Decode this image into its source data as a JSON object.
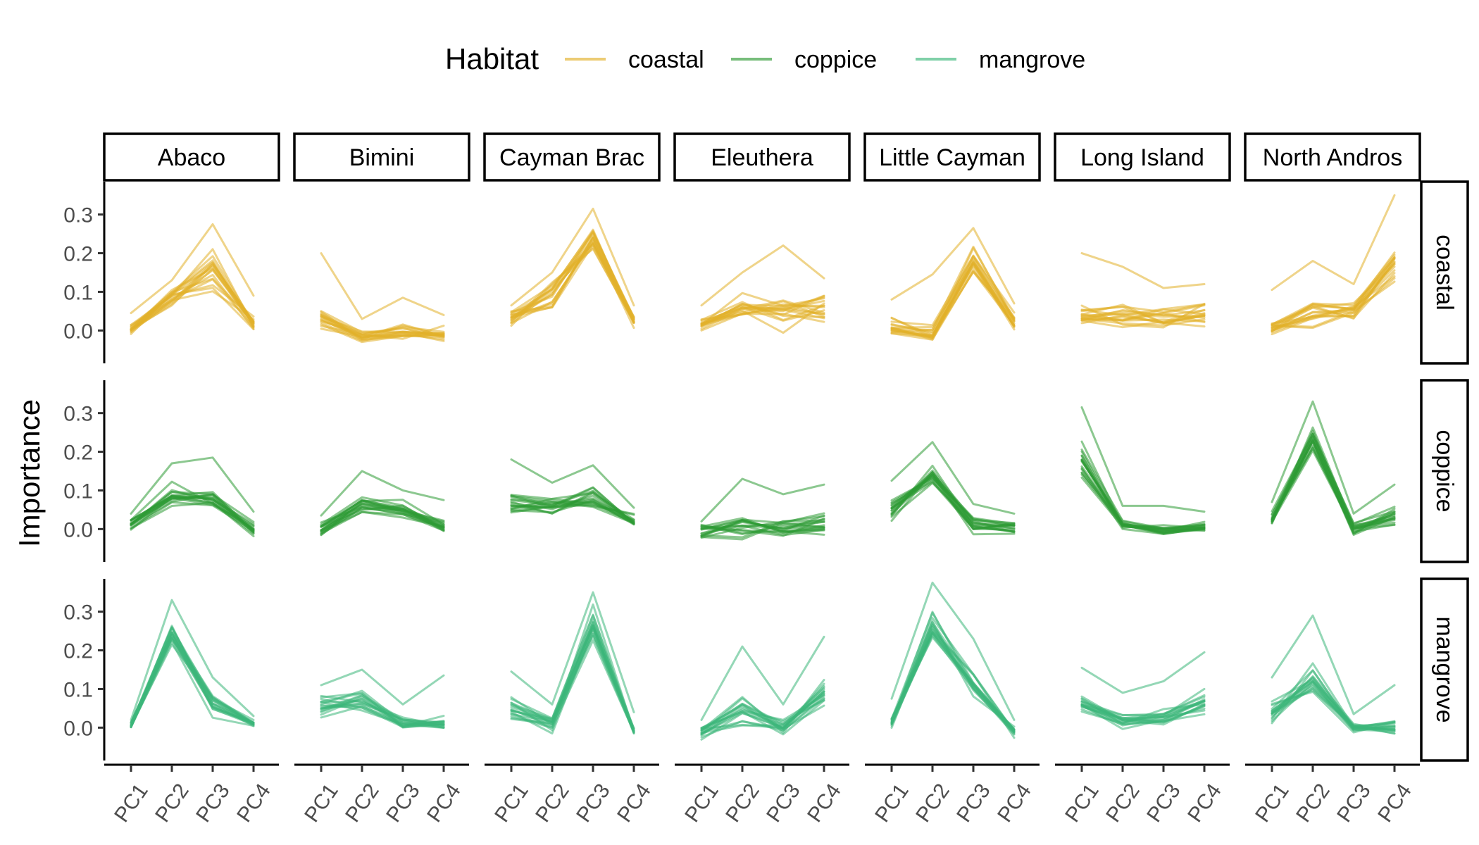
{
  "chart_data": {
    "type": "line",
    "layout": "faceted grid",
    "xlabel": "",
    "ylabel": "Importance",
    "legend": {
      "title": "Habitat",
      "position": "top",
      "entries": [
        {
          "name": "coastal",
          "color": "#E2B12A"
        },
        {
          "name": "coppice",
          "color": "#2E9A34"
        },
        {
          "name": "mangrove",
          "color": "#3CB77A"
        }
      ]
    },
    "columns": [
      "Abaco",
      "Bimini",
      "Cayman Brac",
      "Eleuthera",
      "Little Cayman",
      "Long Island",
      "North Andros"
    ],
    "rows": [
      "coastal",
      "coppice",
      "mangrove"
    ],
    "x": [
      "PC1",
      "PC2",
      "PC3",
      "PC4"
    ],
    "y_ticks": [
      "0.0",
      "0.1",
      "0.2",
      "0.3"
    ],
    "ylim": [
      -0.085,
      0.385
    ],
    "grid": false,
    "line_alpha": 0.55,
    "lines_per_panel": 18,
    "panels": [
      {
        "row": "coastal",
        "column": "Abaco",
        "mean": [
          0.005,
          0.085,
          0.16,
          0.015
        ],
        "spread": [
          0.02,
          0.03,
          0.06,
          0.02
        ],
        "max_line": [
          0.045,
          0.13,
          0.275,
          0.09
        ]
      },
      {
        "row": "coastal",
        "column": "Bimini",
        "mean": [
          0.035,
          -0.015,
          -0.005,
          -0.01
        ],
        "spread": [
          0.035,
          0.02,
          0.025,
          0.02
        ],
        "max_line": [
          0.2,
          0.03,
          0.085,
          0.04
        ]
      },
      {
        "row": "coastal",
        "column": "Cayman Brac",
        "mean": [
          0.03,
          0.09,
          0.235,
          0.025
        ],
        "spread": [
          0.025,
          0.04,
          0.04,
          0.02
        ],
        "max_line": [
          0.065,
          0.15,
          0.315,
          0.065
        ]
      },
      {
        "row": "coastal",
        "column": "Eleuthera",
        "mean": [
          0.015,
          0.05,
          0.05,
          0.055
        ],
        "spread": [
          0.025,
          0.035,
          0.045,
          0.035
        ],
        "max_line": [
          0.065,
          0.15,
          0.22,
          0.135
        ]
      },
      {
        "row": "coastal",
        "column": "Little Cayman",
        "mean": [
          0.01,
          -0.01,
          0.18,
          0.025
        ],
        "spread": [
          0.025,
          0.03,
          0.05,
          0.025
        ],
        "max_line": [
          0.08,
          0.145,
          0.265,
          0.07
        ]
      },
      {
        "row": "coastal",
        "column": "Long Island",
        "mean": [
          0.04,
          0.04,
          0.035,
          0.045
        ],
        "spread": [
          0.04,
          0.04,
          0.035,
          0.035
        ],
        "max_line": [
          0.2,
          0.165,
          0.11,
          0.12
        ]
      },
      {
        "row": "coastal",
        "column": "North Andros",
        "mean": [
          0.01,
          0.05,
          0.045,
          0.17
        ],
        "spread": [
          0.025,
          0.04,
          0.025,
          0.06
        ],
        "max_line": [
          0.105,
          0.18,
          0.12,
          0.35
        ]
      },
      {
        "row": "coppice",
        "column": "Abaco",
        "mean": [
          0.015,
          0.085,
          0.075,
          0.0
        ],
        "spread": [
          0.02,
          0.03,
          0.035,
          0.02
        ],
        "max_line": [
          0.04,
          0.17,
          0.185,
          0.045
        ]
      },
      {
        "row": "coppice",
        "column": "Bimini",
        "mean": [
          0.0,
          0.065,
          0.05,
          0.01
        ],
        "spread": [
          0.02,
          0.03,
          0.03,
          0.02
        ],
        "max_line": [
          0.035,
          0.15,
          0.1,
          0.075
        ]
      },
      {
        "row": "coppice",
        "column": "Cayman Brac",
        "mean": [
          0.07,
          0.065,
          0.085,
          0.02
        ],
        "spread": [
          0.04,
          0.03,
          0.03,
          0.02
        ],
        "max_line": [
          0.18,
          0.12,
          0.165,
          0.055
        ]
      },
      {
        "row": "coppice",
        "column": "Eleuthera",
        "mean": [
          -0.005,
          0.0,
          0.0,
          0.01
        ],
        "spread": [
          0.02,
          0.035,
          0.03,
          0.03
        ],
        "max_line": [
          0.02,
          0.13,
          0.09,
          0.115
        ]
      },
      {
        "row": "coppice",
        "column": "Little Cayman",
        "mean": [
          0.05,
          0.14,
          0.01,
          0.005
        ],
        "spread": [
          0.03,
          0.035,
          0.025,
          0.02
        ],
        "max_line": [
          0.125,
          0.225,
          0.065,
          0.04
        ]
      },
      {
        "row": "coppice",
        "column": "Long Island",
        "mean": [
          0.18,
          0.01,
          0.0,
          0.005
        ],
        "spread": [
          0.06,
          0.015,
          0.02,
          0.015
        ],
        "max_line": [
          0.315,
          0.06,
          0.06,
          0.045
        ]
      },
      {
        "row": "coppice",
        "column": "North Andros",
        "mean": [
          0.02,
          0.23,
          0.0,
          0.03
        ],
        "spread": [
          0.025,
          0.05,
          0.02,
          0.03
        ],
        "max_line": [
          0.07,
          0.33,
          0.04,
          0.115
        ]
      },
      {
        "row": "mangrove",
        "column": "Abaco",
        "mean": [
          0.005,
          0.25,
          0.06,
          0.01
        ],
        "spread": [
          0.01,
          0.04,
          0.03,
          0.01
        ],
        "max_line": [
          0.02,
          0.33,
          0.13,
          0.03
        ]
      },
      {
        "row": "mangrove",
        "column": "Bimini",
        "mean": [
          0.05,
          0.07,
          0.01,
          0.015
        ],
        "spread": [
          0.03,
          0.035,
          0.02,
          0.025
        ],
        "max_line": [
          0.11,
          0.15,
          0.06,
          0.135
        ]
      },
      {
        "row": "mangrove",
        "column": "Cayman Brac",
        "mean": [
          0.05,
          0.01,
          0.27,
          -0.01
        ],
        "spread": [
          0.035,
          0.02,
          0.06,
          0.01
        ],
        "max_line": [
          0.145,
          0.06,
          0.35,
          0.04
        ]
      },
      {
        "row": "mangrove",
        "column": "Eleuthera",
        "mean": [
          -0.01,
          0.04,
          0.0,
          0.09
        ],
        "spread": [
          0.02,
          0.045,
          0.02,
          0.04
        ],
        "max_line": [
          0.02,
          0.21,
          0.06,
          0.235
        ]
      },
      {
        "row": "mangrove",
        "column": "Little Cayman",
        "mean": [
          0.01,
          0.26,
          0.11,
          -0.01
        ],
        "spread": [
          0.015,
          0.05,
          0.05,
          0.015
        ],
        "max_line": [
          0.075,
          0.375,
          0.23,
          0.02
        ]
      },
      {
        "row": "mangrove",
        "column": "Long Island",
        "mean": [
          0.06,
          0.02,
          0.025,
          0.06
        ],
        "spread": [
          0.03,
          0.02,
          0.025,
          0.035
        ],
        "max_line": [
          0.155,
          0.09,
          0.12,
          0.195
        ]
      },
      {
        "row": "mangrove",
        "column": "North Andros",
        "mean": [
          0.04,
          0.12,
          0.0,
          0.0
        ],
        "spread": [
          0.03,
          0.05,
          0.015,
          0.025
        ],
        "max_line": [
          0.13,
          0.29,
          0.035,
          0.11
        ]
      }
    ]
  }
}
